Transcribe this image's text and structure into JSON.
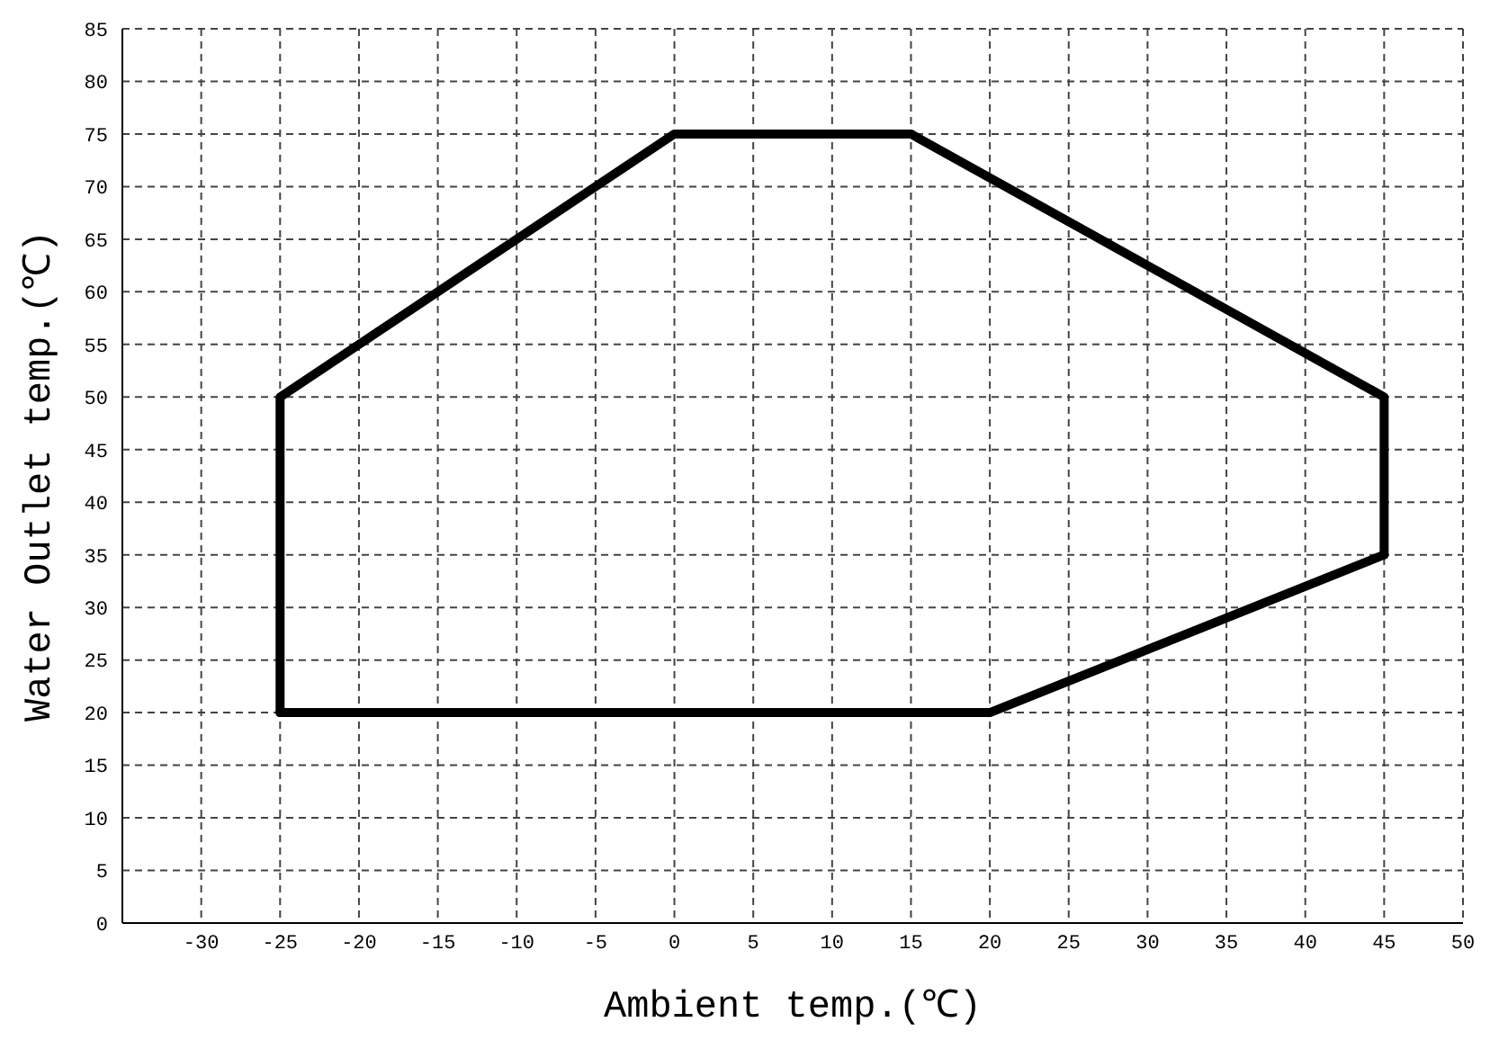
{
  "chart_data": {
    "type": "line",
    "xlabel": "Ambient temp.(℃)",
    "ylabel": "Water Outlet temp.(℃)",
    "series": [
      {
        "color": "#000000",
        "x": [
          -25,
          -25,
          0,
          15,
          45,
          45
        ],
        "values": [
          20,
          50,
          75,
          75,
          50,
          35
        ]
      },
      {
        "color": "#000000",
        "x": [
          -25,
          20,
          45
        ],
        "values": [
          20,
          20,
          35
        ]
      }
    ],
    "xlim": [
      -35,
      50
    ],
    "xticks": [
      -30,
      -25,
      -20,
      -15,
      -10,
      -5,
      0,
      5,
      10,
      15,
      20,
      25,
      30,
      35,
      40,
      45,
      50
    ],
    "ylim": [
      0,
      85
    ],
    "yticks": [
      0,
      5,
      10,
      15,
      20,
      25,
      30,
      35,
      40,
      45,
      50,
      55,
      60,
      65,
      70,
      75,
      80,
      85
    ],
    "grid": true,
    "marker": "none",
    "line_style": "solid",
    "legend": false
  }
}
